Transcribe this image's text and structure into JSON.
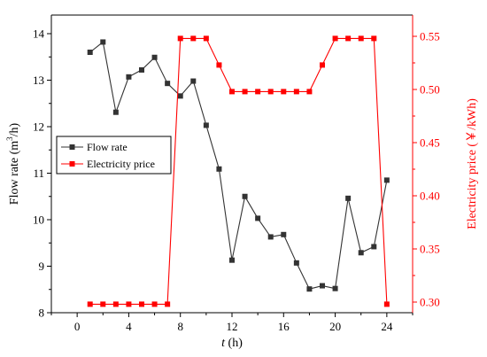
{
  "chart_data": {
    "type": "line",
    "x": [
      1,
      2,
      3,
      4,
      5,
      6,
      7,
      8,
      9,
      10,
      11,
      12,
      13,
      14,
      15,
      16,
      17,
      18,
      19,
      20,
      21,
      22,
      23,
      24
    ],
    "xlabel_italic": "t",
    "xlabel_unit": " (h)",
    "xlim": [
      -2,
      26
    ],
    "xticks": [
      0,
      4,
      8,
      12,
      16,
      20,
      24
    ],
    "left_axis": {
      "label_main": "Flow rate (m",
      "label_sup": "3",
      "label_tail": "/h)",
      "ylim": [
        8,
        14.4
      ],
      "ticks": [
        8,
        9,
        10,
        11,
        12,
        13,
        14
      ],
      "color": "#333333"
    },
    "right_axis": {
      "label": "Electricity price (￥/kWh)",
      "ylim": [
        0.29,
        0.57
      ],
      "ticks": [
        0.3,
        0.35,
        0.4,
        0.45,
        0.5,
        0.55
      ],
      "tick_labels": [
        "0.30",
        "0.35",
        "0.40",
        "0.45",
        "0.50",
        "0.55"
      ],
      "color": "#ff0000"
    },
    "series": [
      {
        "name": "Flow rate",
        "axis": "left",
        "color": "#333333",
        "marker": "square",
        "values": [
          13.6,
          13.82,
          12.31,
          13.07,
          13.22,
          13.49,
          12.93,
          12.66,
          12.98,
          12.03,
          11.09,
          9.13,
          10.5,
          10.03,
          9.63,
          9.68,
          9.07,
          8.51,
          8.58,
          8.52,
          10.46,
          9.29,
          9.42,
          10.85
        ]
      },
      {
        "name": "Electricity price",
        "axis": "right",
        "color": "#ff0000",
        "marker": "square",
        "values": [
          0.298,
          0.298,
          0.298,
          0.298,
          0.298,
          0.298,
          0.298,
          0.548,
          0.548,
          0.548,
          0.523,
          0.498,
          0.498,
          0.498,
          0.498,
          0.498,
          0.498,
          0.498,
          0.523,
          0.548,
          0.548,
          0.548,
          0.548,
          0.298
        ]
      }
    ],
    "legend_position": "left-middle",
    "grid": false
  }
}
